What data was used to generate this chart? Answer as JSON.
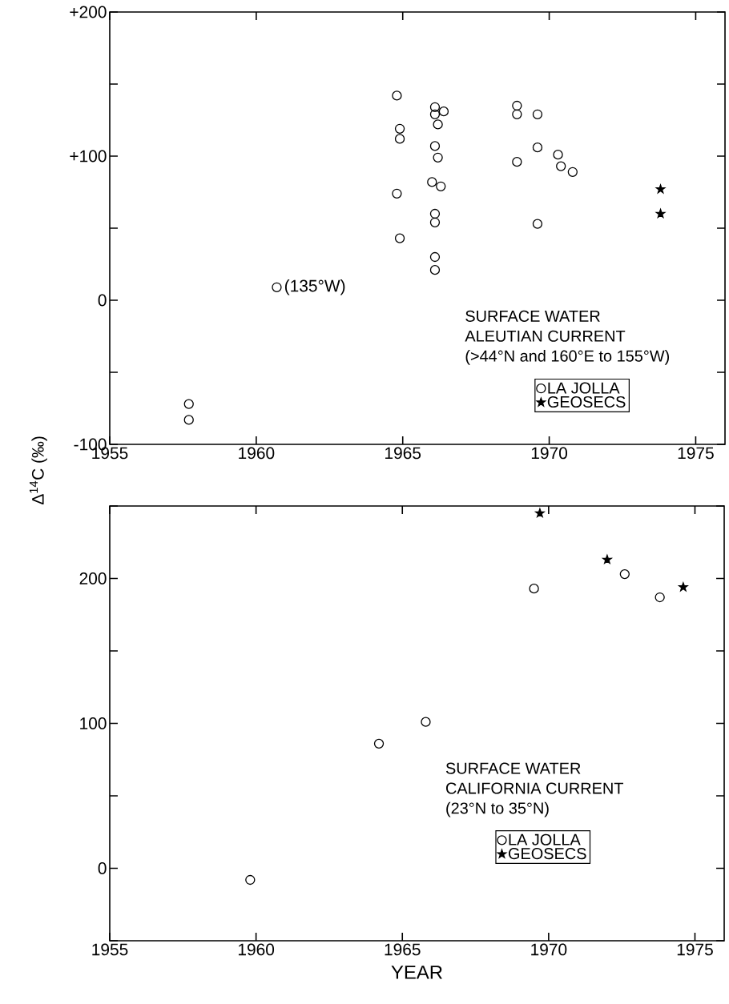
{
  "chart_data": [
    {
      "type": "scatter",
      "ylabel": "Δ$^{14}$C (‰)",
      "xlim": [
        1955,
        1976
      ],
      "ylim": [
        -100,
        200
      ],
      "xticks": [
        1955,
        1960,
        1965,
        1970,
        1975
      ],
      "yticks": [
        -100,
        {
          "value": -50,
          "label": null
        },
        {
          "value": 0,
          "label": "0"
        },
        {
          "value": 50,
          "label": null
        },
        {
          "value": 100,
          "label": "+100"
        },
        {
          "value": 150,
          "label": null
        },
        {
          "value": 200,
          "label": "+200"
        }
      ],
      "legend": "bottom right",
      "annotations": [
        "SURFACE WATER",
        "ALEUTIAN CURRENT",
        "(>44°N and 160°E to 155°W)",
        {
          "text": "(135°W)",
          "x": 1960.7,
          "y": 9
        }
      ],
      "series": [
        {
          "name": "LA JOLLA",
          "color": "#000000",
          "marker": "circle",
          "x": [
            1957.7,
            1957.7,
            1960.7,
            1964.8,
            1964.9,
            1964.9,
            1964.8,
            1964.9,
            1966.1,
            1966.1,
            1966.2,
            1966.4,
            1966.1,
            1966.2,
            1966.0,
            1966.3,
            1966.1,
            1966.1,
            1966.1,
            1966.1,
            1968.9,
            1968.9,
            1968.9,
            1969.6,
            1969.6,
            1969.6,
            1970.3,
            1970.4,
            1970.8
          ],
          "values": [
            -72,
            -83,
            9,
            142,
            119,
            112,
            74,
            43,
            134,
            129,
            122,
            131,
            107,
            99,
            82,
            79,
            60,
            54,
            30,
            21,
            135,
            129,
            96,
            129,
            106,
            53,
            101,
            93,
            89
          ]
        },
        {
          "name": "GEOSECS",
          "color": "#000000",
          "marker": "star",
          "x": [
            1973.8,
            1973.8
          ],
          "values": [
            77,
            60
          ]
        }
      ]
    },
    {
      "type": "scatter",
      "xlabel": "YEAR",
      "xlim": [
        1955,
        1976
      ],
      "ylim": [
        -50,
        250
      ],
      "xticks": [
        1955,
        1960,
        1965,
        1970,
        1975
      ],
      "yticks": [
        {
          "value": -50,
          "label": null
        },
        0,
        {
          "value": 50,
          "label": null
        },
        100,
        {
          "value": 150,
          "label": null
        },
        200,
        {
          "value": 250,
          "label": null
        }
      ],
      "legend": "bottom",
      "annotations": [
        "SURFACE WATER",
        "CALIFORNIA CURRENT",
        "(23°N to 35°N)"
      ],
      "series": [
        {
          "name": "LA JOLLA",
          "color": "#000000",
          "marker": "circle",
          "x": [
            1959.8,
            1964.2,
            1965.8,
            1969.5,
            1972.6,
            1973.8
          ],
          "values": [
            -8,
            86,
            101,
            193,
            203,
            187
          ]
        },
        {
          "name": "GEOSECS",
          "color": "#000000",
          "marker": "star",
          "x": [
            1969.7,
            1972.0,
            1974.6
          ],
          "values": [
            245,
            213,
            194
          ]
        }
      ]
    }
  ]
}
